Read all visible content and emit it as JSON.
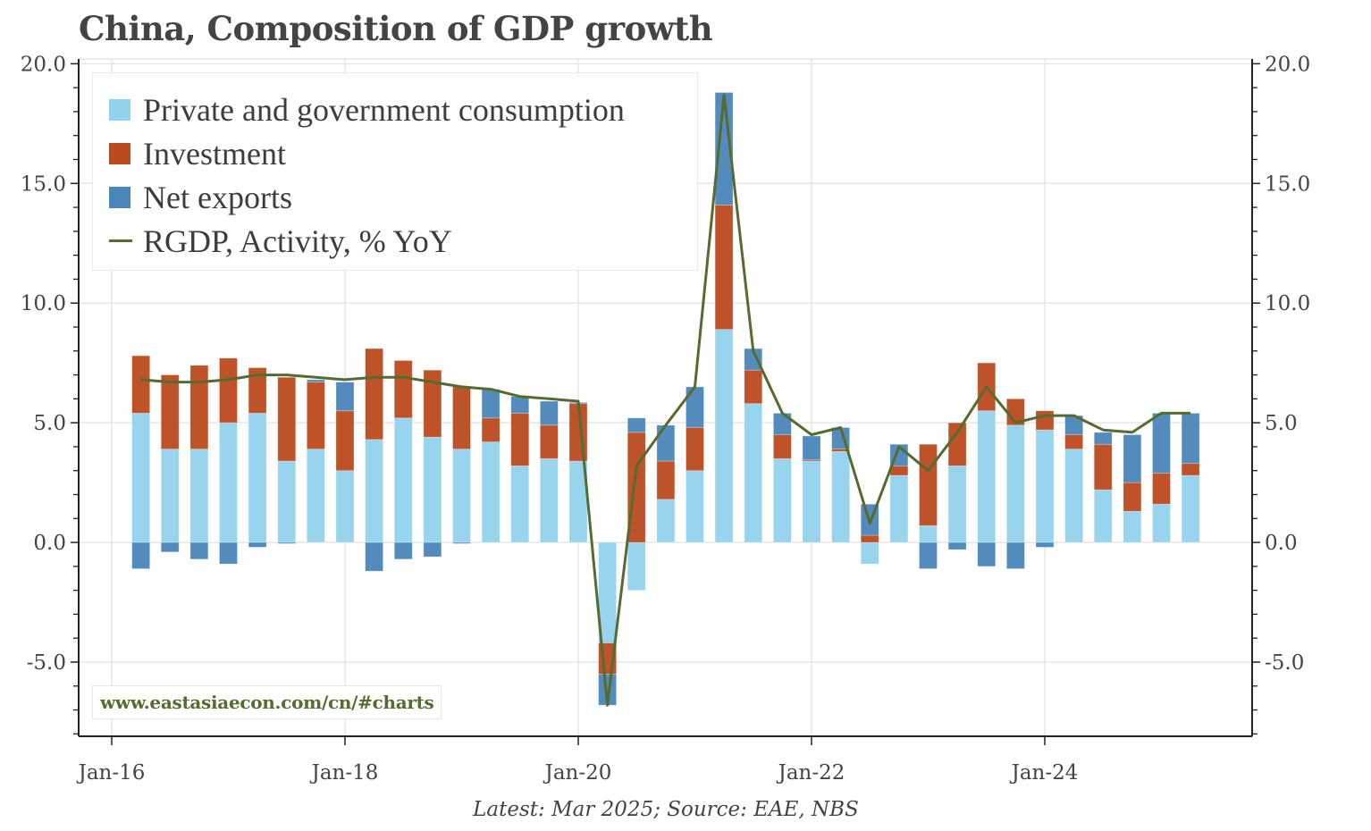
{
  "title": "China, Composition of GDP growth",
  "source_note": "Latest: Mar 2025; Source: EAE, NBS",
  "watermark": "www.eastasiaecon.com/cn/#charts",
  "colors": {
    "consumption": "#92d2ec",
    "investment": "#bb4a1e",
    "net_exports": "#4a86b8",
    "rgdp": "#556b2f",
    "grid": "#e6e6e6",
    "axis": "#222222"
  },
  "legend": [
    {
      "key": "consumption",
      "label": "Private and government consumption",
      "type": "bar"
    },
    {
      "key": "investment",
      "label": "Investment",
      "type": "bar"
    },
    {
      "key": "net_exports",
      "label": "Net exports",
      "type": "bar"
    },
    {
      "key": "rgdp",
      "label": "RGDP, Activity, % YoY",
      "type": "line"
    }
  ],
  "chart_data": {
    "type": "bar",
    "subtype": "stacked bar with line overlay",
    "title": "China, Composition of GDP growth",
    "xlabel": "",
    "ylabel": "",
    "ylim": [
      -8.1,
      20.2
    ],
    "y_ticks": [
      -5.0,
      0.0,
      5.0,
      10.0,
      15.0,
      20.0
    ],
    "y_tick_labels": [
      "-5.0",
      "0.0",
      "5.0",
      "10.0",
      "15.0",
      "20.0"
    ],
    "y_minor_tick_step": 1.0,
    "secondary_y_axis": {
      "ylim": [
        -8.1,
        20.2
      ],
      "tick_labels": [
        "-5.0",
        "0.0",
        "5.0",
        "10.0",
        "15.0",
        "20.0"
      ]
    },
    "x_tick_labels": [
      "Jan-16",
      "Jan-18",
      "Jan-20",
      "Jan-22",
      "Jan-24"
    ],
    "grid": true,
    "legend_position": "top-left",
    "categories": [
      "2016Q1",
      "2016Q2",
      "2016Q3",
      "2016Q4",
      "2017Q1",
      "2017Q2",
      "2017Q3",
      "2017Q4",
      "2018Q1",
      "2018Q2",
      "2018Q3",
      "2018Q4",
      "2019Q1",
      "2019Q2",
      "2019Q3",
      "2019Q4",
      "2020Q1",
      "2020Q2",
      "2020Q3",
      "2020Q4",
      "2021Q1",
      "2021Q2",
      "2021Q3",
      "2021Q4",
      "2022Q1",
      "2022Q2",
      "2022Q3",
      "2022Q4",
      "2023Q1",
      "2023Q2",
      "2023Q3",
      "2023Q4",
      "2024Q1",
      "2024Q2",
      "2024Q3",
      "2024Q4",
      "2025Q1"
    ],
    "series": [
      {
        "name": "Private and government consumption",
        "key": "consumption",
        "kind": "bar",
        "values": [
          5.4,
          3.9,
          3.9,
          5.0,
          5.4,
          3.4,
          3.9,
          3.0,
          4.3,
          5.2,
          4.4,
          3.9,
          4.2,
          3.2,
          3.5,
          3.4,
          -4.2,
          -2.0,
          1.8,
          3.0,
          8.9,
          5.8,
          3.5,
          3.4,
          3.8,
          -0.9,
          2.8,
          0.7,
          3.2,
          5.5,
          4.9,
          4.7,
          3.9,
          2.2,
          1.3,
          1.6,
          2.8
        ]
      },
      {
        "name": "Investment",
        "key": "investment",
        "kind": "bar",
        "values": [
          2.4,
          3.1,
          3.5,
          2.7,
          1.9,
          3.5,
          2.8,
          2.5,
          3.8,
          2.4,
          2.8,
          2.6,
          1.0,
          2.2,
          1.4,
          2.4,
          -1.3,
          4.6,
          1.6,
          1.8,
          5.2,
          1.4,
          1.0,
          0.05,
          0.1,
          0.3,
          0.4,
          3.4,
          1.8,
          2.0,
          1.1,
          0.8,
          0.6,
          1.9,
          1.2,
          1.3,
          0.5
        ]
      },
      {
        "name": "Net exports",
        "key": "net_exports",
        "kind": "bar",
        "values": [
          -1.1,
          -0.4,
          -0.7,
          -0.9,
          -0.2,
          -0.05,
          0.1,
          1.2,
          -1.2,
          -0.7,
          -0.6,
          -0.05,
          1.2,
          0.7,
          1.0,
          0.05,
          -1.3,
          0.6,
          1.5,
          1.7,
          4.7,
          0.9,
          0.9,
          1.0,
          0.9,
          1.3,
          0.9,
          -1.1,
          -0.3,
          -1.0,
          -1.1,
          -0.2,
          0.8,
          0.5,
          2.0,
          2.5,
          2.1
        ]
      },
      {
        "name": "RGDP, Activity, % YoY",
        "key": "rgdp",
        "kind": "line",
        "values": [
          6.8,
          6.7,
          6.7,
          6.8,
          7.0,
          7.0,
          6.9,
          6.8,
          6.9,
          6.9,
          6.7,
          6.5,
          6.4,
          6.1,
          6.0,
          5.9,
          -6.8,
          3.2,
          4.9,
          6.5,
          18.7,
          8.0,
          5.4,
          4.5,
          4.8,
          0.8,
          4.0,
          3.0,
          4.6,
          6.5,
          5.0,
          5.3,
          5.3,
          4.7,
          4.6,
          5.4,
          5.4
        ]
      }
    ]
  }
}
